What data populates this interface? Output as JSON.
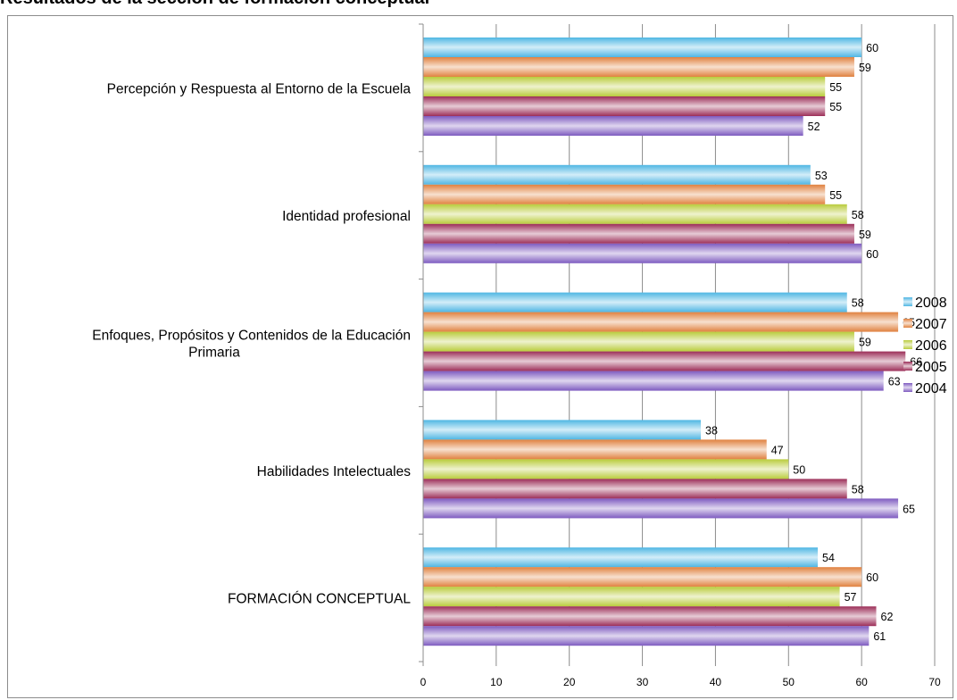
{
  "chart_data": {
    "type": "bar",
    "orientation": "horizontal",
    "title": "Resultados de la sección de formación conceptual",
    "categories": [
      [
        "Percepción y Respuesta al Entorno de la Escuela"
      ],
      [
        "Identidad profesional"
      ],
      [
        "Enfoques, Propósitos y Contenidos de la Educación",
        "Primaria"
      ],
      [
        "Habilidades Intelectuales"
      ],
      [
        "FORMACIÓN CONCEPTUAL"
      ]
    ],
    "series": [
      {
        "name": "2008",
        "color": "#4fb6e3",
        "values": [
          60,
          53,
          58,
          38,
          54
        ]
      },
      {
        "name": "2007",
        "color": "#e0813f",
        "values": [
          59,
          55,
          65,
          47,
          60
        ]
      },
      {
        "name": "2006",
        "color": "#b9cc3c",
        "values": [
          55,
          58,
          59,
          50,
          57
        ]
      },
      {
        "name": "2005",
        "color": "#9c2e58",
        "values": [
          55,
          59,
          66,
          58,
          62
        ]
      },
      {
        "name": "2004",
        "color": "#7e5bc0",
        "values": [
          52,
          60,
          63,
          65,
          61
        ]
      }
    ],
    "xlim": [
      0,
      70
    ],
    "xticks": [
      0,
      10,
      20,
      30,
      40,
      50,
      60,
      70
    ],
    "grid": true,
    "legend": "right"
  }
}
